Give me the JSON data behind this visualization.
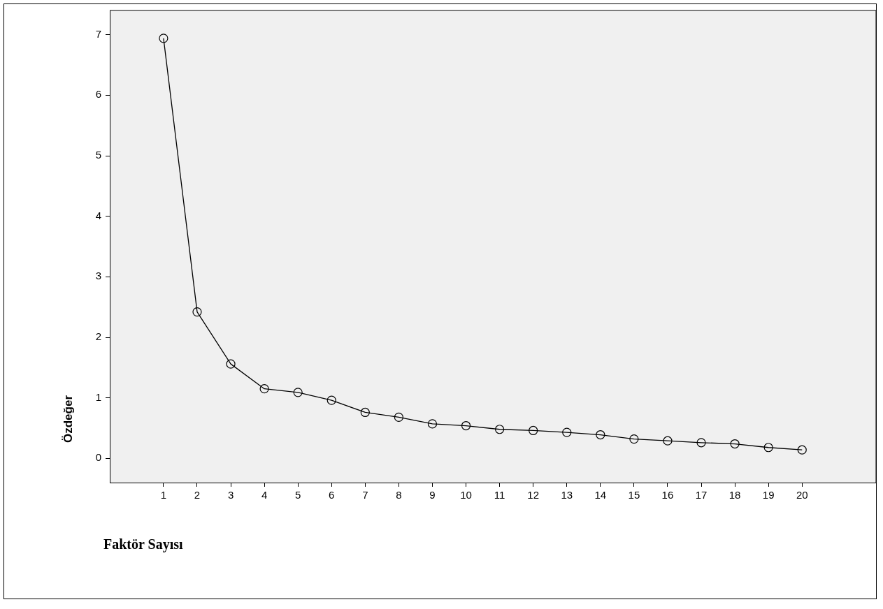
{
  "chart_data": {
    "type": "line",
    "xlabel": "Faktör Sayısı",
    "ylabel": "Özdeğer",
    "x": [
      1,
      2,
      3,
      4,
      5,
      6,
      7,
      8,
      9,
      10,
      11,
      12,
      13,
      14,
      15,
      16,
      17,
      18,
      19,
      20
    ],
    "series": [
      {
        "color": "#000000",
        "values": [
          6.94,
          2.42,
          1.56,
          1.15,
          1.09,
          0.96,
          0.76,
          0.68,
          0.57,
          0.54,
          0.48,
          0.46,
          0.43,
          0.39,
          0.32,
          0.29,
          0.26,
          0.24,
          0.18,
          0.14
        ]
      }
    ],
    "xlim": [
      -0.6,
      22.2
    ],
    "xticks": [
      1,
      2,
      3,
      4,
      5,
      6,
      7,
      8,
      9,
      10,
      11,
      12,
      13,
      14,
      15,
      16,
      17,
      18,
      19,
      20
    ],
    "ylim": [
      -0.4,
      7.4
    ],
    "yticks": [
      0,
      1,
      2,
      3,
      4,
      5,
      6,
      7
    ],
    "grid": false,
    "legend": false,
    "marker": "circle",
    "line_style": "solid"
  }
}
